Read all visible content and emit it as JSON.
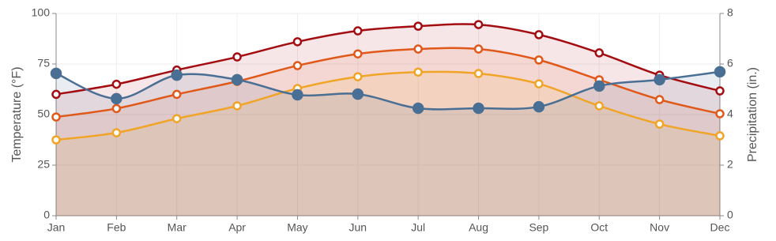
{
  "chart_data": {
    "type": "line",
    "categories": [
      "Jan",
      "Feb",
      "Mar",
      "Apr",
      "May",
      "Jun",
      "Jul",
      "Aug",
      "Sep",
      "Oct",
      "Nov",
      "Dec"
    ],
    "y_label": "Temperature (°F)",
    "y2_label": "Precipitation (in.)",
    "ylim": [
      0,
      100
    ],
    "yticks": [
      0,
      25,
      50,
      75,
      100
    ],
    "y2lim": [
      0,
      8
    ],
    "y2ticks": [
      0,
      2,
      4,
      6,
      8
    ],
    "grid": true,
    "series": [
      {
        "color": "#a30d12",
        "values": [
          60,
          65,
          72,
          78.5,
          86,
          91.4,
          93.7,
          94.5,
          89.5,
          80.5,
          69.5,
          61.7
        ]
      },
      {
        "color": "#e0581a",
        "values": [
          48.8,
          53,
          60,
          66.4,
          74.2,
          80,
          82.4,
          82.4,
          77,
          67.2,
          57.4,
          50.4
        ]
      },
      {
        "color": "#f0a428",
        "values": [
          37.5,
          41,
          48,
          54.3,
          62.9,
          68.7,
          71,
          70.3,
          65.2,
          54.3,
          45.3,
          39.5
        ]
      },
      {
        "color": "#4a6f94",
        "axis": "y2",
        "values": [
          5.63,
          4.63,
          5.56,
          5.38,
          4.78,
          4.81,
          4.25,
          4.25,
          4.31,
          5.13,
          5.38,
          5.69
        ]
      }
    ]
  }
}
